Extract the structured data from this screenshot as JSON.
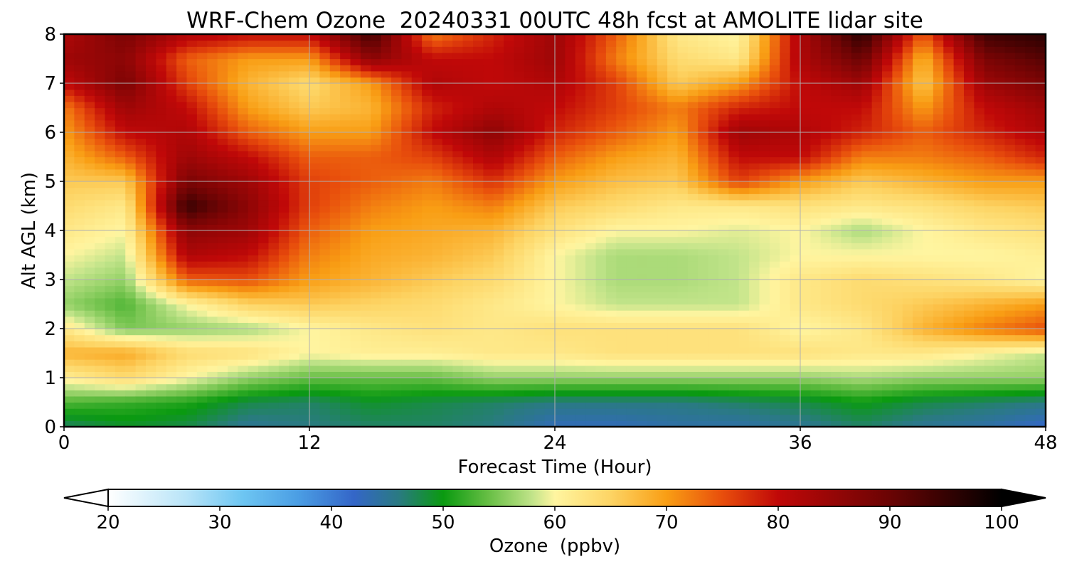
{
  "chart_data": {
    "type": "heatmap",
    "title": "WRF-Chem Ozone  20240331 00UTC 48h fcst at AMOLITE lidar site",
    "xlabel": "Forecast Time (Hour)",
    "ylabel": "Alt AGL (km)",
    "xlim": [
      0,
      48
    ],
    "ylim": [
      0,
      8
    ],
    "xticks": [
      0,
      12,
      24,
      36,
      48
    ],
    "yticks": [
      0,
      1,
      2,
      3,
      4,
      5,
      6,
      7,
      8
    ],
    "grid": true,
    "x": [
      0,
      3,
      6,
      9,
      12,
      15,
      18,
      21,
      24,
      27,
      30,
      33,
      36,
      39,
      42,
      45,
      48
    ],
    "y": [
      0,
      0.5,
      1,
      1.5,
      2,
      2.5,
      3,
      3.5,
      4,
      4.5,
      5,
      5.5,
      6,
      6.5,
      7,
      7.5,
      8
    ],
    "z": [
      [
        47,
        49,
        48,
        45,
        46,
        47,
        47,
        46,
        43,
        43,
        44,
        44,
        45,
        47,
        45,
        44,
        42
      ],
      [
        53,
        52,
        51,
        48,
        47,
        49,
        48,
        47,
        46,
        46,
        46,
        47,
        48,
        50,
        48,
        47,
        46
      ],
      [
        61,
        64,
        60,
        56,
        54,
        54,
        54,
        56,
        56,
        56,
        56,
        56,
        56,
        57,
        56,
        56,
        56
      ],
      [
        68,
        69,
        64,
        63,
        60,
        61,
        61,
        62,
        62,
        63,
        63,
        63,
        63,
        62,
        62,
        60,
        58
      ],
      [
        62,
        55,
        56,
        57,
        60,
        62,
        63,
        62,
        63,
        63,
        63,
        63,
        60,
        62,
        68,
        72,
        75
      ],
      [
        56,
        53,
        60,
        65,
        66,
        65,
        64,
        62,
        60,
        58,
        58,
        58,
        62,
        64,
        66,
        68,
        70
      ],
      [
        58,
        56,
        74,
        75,
        70,
        68,
        66,
        64,
        60,
        57,
        57,
        58,
        62,
        64,
        63,
        62,
        60
      ],
      [
        60,
        58,
        82,
        80,
        72,
        69,
        68,
        66,
        60,
        57,
        57,
        58,
        60,
        60,
        60,
        60,
        61
      ],
      [
        62,
        60,
        86,
        84,
        74,
        70,
        69,
        68,
        63,
        60,
        60,
        59,
        60,
        57,
        60,
        62,
        63
      ],
      [
        64,
        62,
        95,
        86,
        76,
        72,
        70,
        72,
        66,
        64,
        62,
        62,
        63,
        62,
        63,
        65,
        66
      ],
      [
        66,
        66,
        88,
        84,
        76,
        74,
        72,
        77,
        70,
        67,
        66,
        76,
        70,
        66,
        68,
        70,
        70
      ],
      [
        68,
        74,
        84,
        80,
        74,
        74,
        76,
        82,
        74,
        70,
        68,
        80,
        80,
        72,
        72,
        74,
        78
      ],
      [
        70,
        80,
        82,
        74,
        70,
        70,
        80,
        86,
        78,
        74,
        70,
        84,
        82,
        78,
        74,
        78,
        82
      ],
      [
        72,
        84,
        80,
        70,
        66,
        68,
        78,
        82,
        80,
        76,
        72,
        78,
        80,
        80,
        70,
        80,
        84
      ],
      [
        80,
        88,
        76,
        68,
        64,
        70,
        82,
        80,
        82,
        76,
        66,
        70,
        80,
        84,
        66,
        84,
        88
      ],
      [
        84,
        86,
        74,
        70,
        70,
        86,
        80,
        80,
        84,
        72,
        64,
        62,
        82,
        90,
        68,
        88,
        92
      ],
      [
        82,
        88,
        82,
        80,
        80,
        94,
        72,
        78,
        84,
        74,
        62,
        60,
        82,
        96,
        74,
        94,
        96
      ]
    ],
    "colorbar": {
      "label": "Ozone  (ppbv)",
      "min": 20,
      "max": 100,
      "ticks": [
        "20",
        "30",
        "40",
        "50",
        "60",
        "70",
        "80",
        "90",
        "100"
      ],
      "extend": "both",
      "stops": [
        {
          "v": 20,
          "c": "#ffffff"
        },
        {
          "v": 27,
          "c": "#b8e4f8"
        },
        {
          "v": 32,
          "c": "#6ec6f2"
        },
        {
          "v": 37,
          "c": "#4b9ee4"
        },
        {
          "v": 42,
          "c": "#3466c8"
        },
        {
          "v": 46,
          "c": "#2a7a82"
        },
        {
          "v": 50,
          "c": "#0a9a10"
        },
        {
          "v": 54,
          "c": "#66be44"
        },
        {
          "v": 58,
          "c": "#c2e48a"
        },
        {
          "v": 60,
          "c": "#fff5a0"
        },
        {
          "v": 65,
          "c": "#fdd464"
        },
        {
          "v": 70,
          "c": "#f99e14"
        },
        {
          "v": 75,
          "c": "#e84e0c"
        },
        {
          "v": 80,
          "c": "#c00808"
        },
        {
          "v": 90,
          "c": "#6a0404"
        },
        {
          "v": 100,
          "c": "#000000"
        }
      ]
    }
  }
}
